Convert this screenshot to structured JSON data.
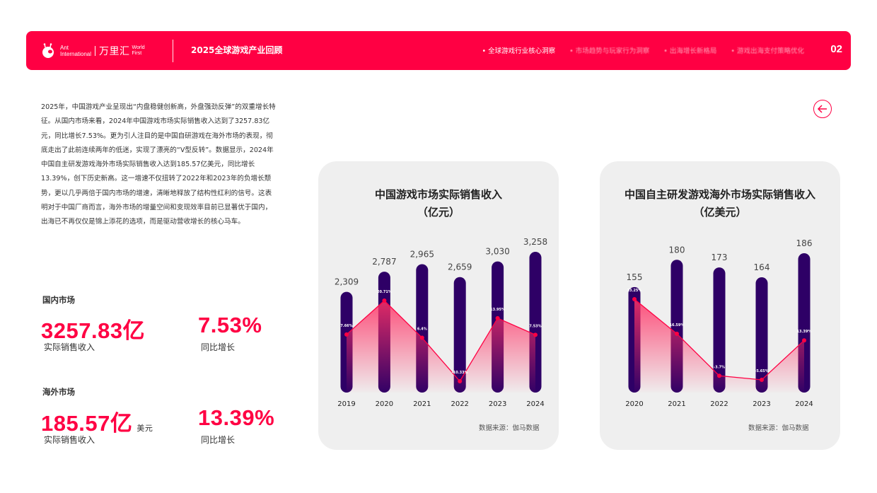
{
  "header": {
    "logo_ant_line1": "Ant",
    "logo_ant_line2": "International",
    "logo_cn": "万里汇",
    "logo_wf_line1": "World",
    "logo_wf_line2": "First",
    "report_title": "2025全球游戏产业回顾",
    "nav": [
      {
        "label": "全球游戏行业核心洞察",
        "active": true
      },
      {
        "label": "市场趋势与玩家行为洞察",
        "active": false
      },
      {
        "label": "出海增长新格局",
        "active": false
      },
      {
        "label": "游戏出海支付策略优化",
        "active": false
      }
    ],
    "page_number": "02"
  },
  "intro": {
    "text": "2025年，中国游戏产业呈现出“内盘稳健创新高，外盘强劲反弹”的双重增长特征。从国内市场来看，2024年中国游戏市场实际销售收入达到了3257.83亿元，同比增长7.53%。更为引人注目的是中国自研游戏在海外市场的表现，彻底走出了此前连续两年的低迷，实现了漂亮的“V型反转”。数据显示，2024年中国自主研发游戏海外市场实际销售收入达到185.57亿美元，同比增长13.39%，创下历史新高。这一增速不仅扭转了2022年和2023年的负增长颓势，更以几乎两倍于国内市场的增速，清晰地释放了结构性红利的信号。这表明对于中国厂商而言，海外市场的增量空间和变现效率目前已显著优于国内，出海已不再仅仅是锦上添花的选项，而是驱动营收增长的核心马车。"
  },
  "metrics": {
    "domestic": {
      "label": "国内市场",
      "revenue": "3257.83亿",
      "revenue_label": "实际销售收入",
      "growth": "7.53%",
      "growth_label": "同比增长"
    },
    "overseas": {
      "label": "海外市场",
      "revenue": "185.57亿",
      "revenue_unit": "美元",
      "revenue_label": "实际销售收入",
      "growth": "13.39%",
      "growth_label": "同比增长"
    }
  },
  "back_button": {
    "icon": "arrow-left-icon"
  },
  "colors": {
    "accent": "#ff0043",
    "bar": "#2e0066",
    "card_bg": "#efefef"
  },
  "chart_data": [
    {
      "type": "bar",
      "title": "中国游戏市场实际销售收入",
      "subtitle": "（亿元）",
      "categories": [
        "2019",
        "2020",
        "2021",
        "2022",
        "2023",
        "2024"
      ],
      "values": [
        2309,
        2787,
        2965,
        2659,
        3030,
        3258
      ],
      "value_labels": [
        "2,309",
        "2,787",
        "2,965",
        "2,659",
        "3,030",
        "3,258"
      ],
      "series": [
        {
          "name": "实际销售收入",
          "type": "bar",
          "values": [
            2309,
            2787,
            2965,
            2659,
            3030,
            3258
          ]
        },
        {
          "name": "同比增长率",
          "type": "line",
          "values": [
            7.66,
            20.71,
            6.4,
            -10.33,
            13.95,
            7.53
          ],
          "labels": [
            "7.66%",
            "20.71%",
            "6.4%",
            "-10.33%",
            "13.95%",
            "7.53%"
          ]
        }
      ],
      "xlabel": "",
      "ylabel": "",
      "grid": false,
      "source": "数据来源：伽马数据"
    },
    {
      "type": "bar",
      "title": "中国自主研发游戏海外市场实际销售收入",
      "subtitle": "（亿美元）",
      "categories": [
        "2020",
        "2021",
        "2022",
        "2023",
        "2024"
      ],
      "values": [
        155,
        180,
        173,
        164,
        186
      ],
      "value_labels": [
        "155",
        "180",
        "173",
        "164",
        "186"
      ],
      "series": [
        {
          "name": "实际销售收入",
          "type": "bar",
          "values": [
            155,
            180,
            173,
            164,
            186
          ]
        },
        {
          "name": "同比增长率",
          "type": "line",
          "values": [
            33.25,
            16.59,
            -3.7,
            -5.65,
            13.39
          ],
          "labels": [
            "33.25%",
            "16.59%",
            "-3.7%",
            "-5.65%",
            "13.39%"
          ]
        }
      ],
      "xlabel": "",
      "ylabel": "",
      "grid": false,
      "source": "数据来源：伽马数据"
    }
  ]
}
